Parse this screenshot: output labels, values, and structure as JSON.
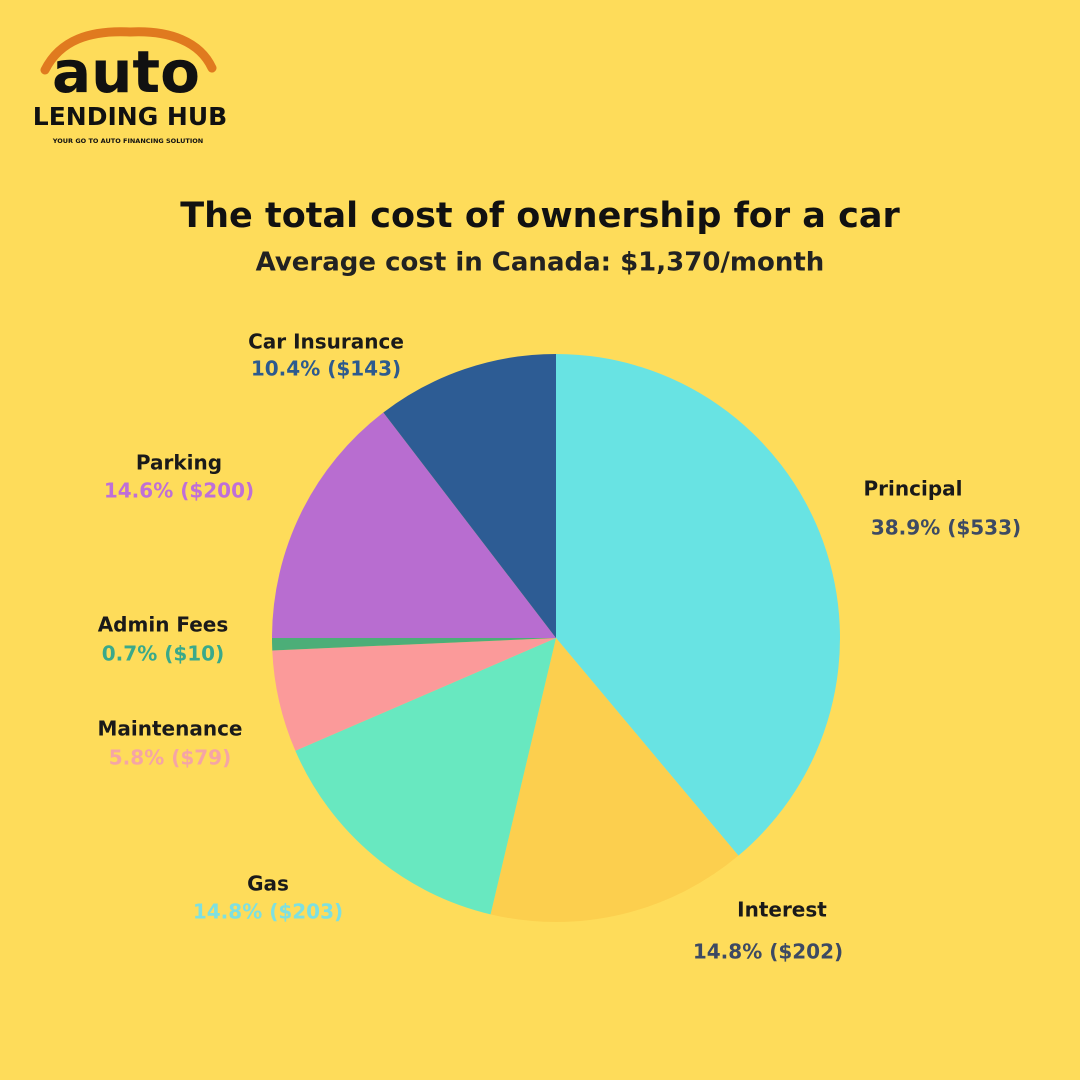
{
  "logo": {
    "name": "auto",
    "subtitle": "LENDING HUB",
    "tagline": "YOUR GO TO AUTO FINANCING SOLUTION"
  },
  "chart_data": {
    "type": "pie",
    "title": "The total cost of ownership for a car",
    "subtitle": "Average cost in Canada: $1,370/month",
    "categories": [
      "Principal",
      "Interest",
      "Gas",
      "Maintenance",
      "Admin Fees",
      "Parking",
      "Car Insurance"
    ],
    "values": [
      38.9,
      14.8,
      14.8,
      5.8,
      0.7,
      14.6,
      10.4
    ],
    "value_labels": [
      "38.9% ($533)",
      "14.8% ($202)",
      "14.8% ($203)",
      "5.8% ($79)",
      "0.7% ($10)",
      "14.6% ($200)",
      "10.4% ($143)"
    ],
    "colors": [
      "#68e3e3",
      "#fccf4e",
      "#68e8c0",
      "#fb9a9a",
      "#4cae78",
      "#b86dd0",
      "#2d5c94"
    ],
    "label_colors": [
      "#3d4a63",
      "#3d4a63",
      "#7ee0e0",
      "#f5a5a5",
      "#3aa98a",
      "#bf6fd8",
      "#2d5a8e"
    ]
  }
}
